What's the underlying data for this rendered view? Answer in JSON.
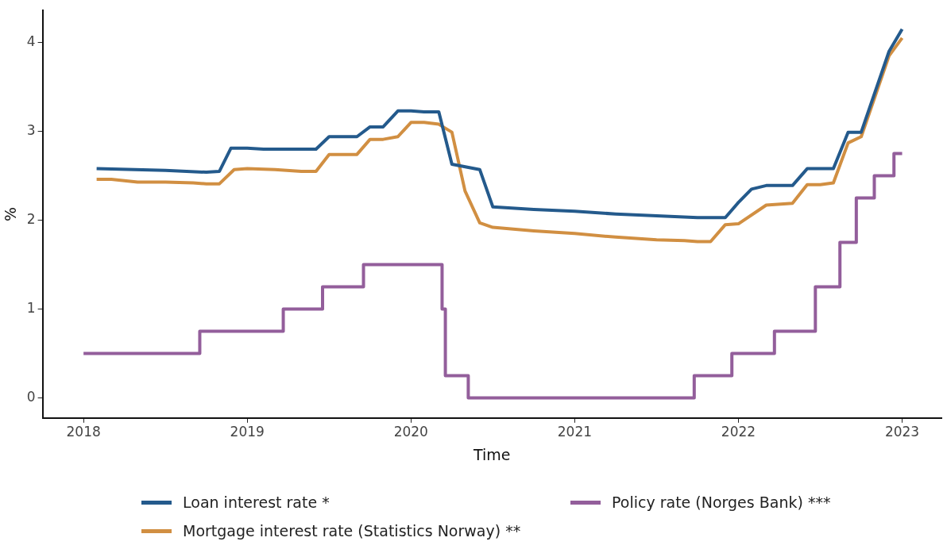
{
  "chart_data": {
    "type": "line",
    "xlabel": "Time",
    "ylabel": "%",
    "xlim": [
      2017.75,
      2023.24
    ],
    "xticks": [
      2018,
      2019,
      2020,
      2021,
      2022,
      2023
    ],
    "ylim": [
      -0.225,
      4.36
    ],
    "yticks": [
      0,
      1,
      2,
      3,
      4
    ],
    "grid": false,
    "legend": "bottom",
    "marker": "none",
    "line_style": "solid",
    "series": [
      {
        "name": "Loan interest rate *",
        "color": "#245a8c",
        "x": [
          2018.08,
          2018.5,
          2018.75,
          2018.83,
          2018.9,
          2019.0,
          2019.1,
          2019.42,
          2019.5,
          2019.67,
          2019.75,
          2019.83,
          2019.92,
          2020.0,
          2020.08,
          2020.17,
          2020.25,
          2020.42,
          2020.5,
          2020.75,
          2021.0,
          2021.25,
          2021.5,
          2021.75,
          2021.92,
          2022.0,
          2022.08,
          2022.17,
          2022.33,
          2022.42,
          2022.58,
          2022.67,
          2022.75,
          2022.92,
          2023.0
        ],
        "values": [
          2.58,
          2.56,
          2.54,
          2.55,
          2.81,
          2.81,
          2.8,
          2.8,
          2.94,
          2.94,
          3.05,
          3.05,
          3.23,
          3.23,
          3.22,
          3.22,
          2.63,
          2.57,
          2.15,
          2.12,
          2.1,
          2.07,
          2.05,
          2.03,
          2.03,
          2.2,
          2.35,
          2.39,
          2.39,
          2.58,
          2.58,
          2.99,
          2.99,
          3.9,
          4.15
        ]
      },
      {
        "name": "Mortgage interest rate (Statistics Norway) **",
        "color": "#d18f42",
        "x": [
          2018.08,
          2018.17,
          2018.33,
          2018.5,
          2018.67,
          2018.75,
          2018.83,
          2018.92,
          2019.0,
          2019.17,
          2019.33,
          2019.42,
          2019.5,
          2019.67,
          2019.75,
          2019.83,
          2019.92,
          2020.0,
          2020.08,
          2020.17,
          2020.25,
          2020.33,
          2020.42,
          2020.5,
          2020.75,
          2021.0,
          2021.25,
          2021.5,
          2021.67,
          2021.75,
          2021.83,
          2021.92,
          2022.0,
          2022.17,
          2022.33,
          2022.42,
          2022.5,
          2022.58,
          2022.67,
          2022.75,
          2022.92,
          2023.0
        ],
        "values": [
          2.46,
          2.46,
          2.43,
          2.43,
          2.42,
          2.41,
          2.41,
          2.57,
          2.58,
          2.57,
          2.55,
          2.55,
          2.74,
          2.74,
          2.91,
          2.91,
          2.94,
          3.1,
          3.1,
          3.08,
          2.99,
          2.33,
          1.97,
          1.92,
          1.88,
          1.85,
          1.81,
          1.78,
          1.77,
          1.76,
          1.76,
          1.95,
          1.96,
          2.17,
          2.19,
          2.4,
          2.4,
          2.42,
          2.87,
          2.94,
          3.85,
          4.05
        ]
      },
      {
        "name": "Policy rate (Norges Bank) ***",
        "type": "step",
        "color": "#935e9b",
        "x": [
          2018.0,
          2018.71,
          2019.22,
          2019.46,
          2019.71,
          2020.19,
          2020.21,
          2020.35,
          2021.73,
          2021.96,
          2022.22,
          2022.47,
          2022.62,
          2022.72,
          2022.83,
          2022.95,
          2023.0
        ],
        "values": [
          0.5,
          0.75,
          1.0,
          1.25,
          1.5,
          1.0,
          0.25,
          0,
          0.25,
          0.5,
          0.75,
          1.25,
          1.75,
          2.25,
          2.5,
          2.75,
          2.75
        ]
      }
    ]
  }
}
